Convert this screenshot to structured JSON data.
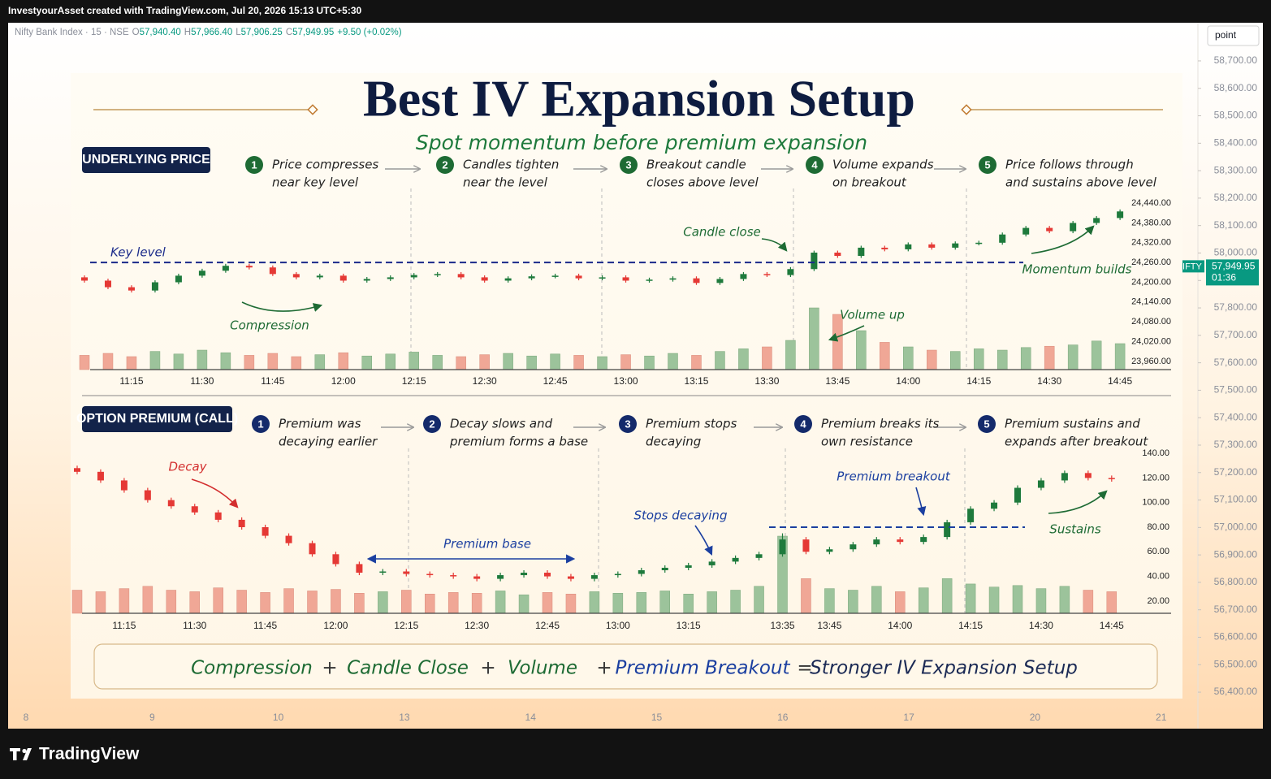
{
  "header": {
    "watermark": "InvestyourAsset created with TradingView.com, Jul 20, 2026 15:13 UTC+5:30"
  },
  "footer": {
    "logo": "TradingView"
  },
  "tv_chart": {
    "legend": {
      "symbol": "Nifty Bank Index · 15 · NSE",
      "items": [
        [
          "O",
          "57,940.40"
        ],
        [
          "H",
          "57,966.40"
        ],
        [
          "L",
          "57,906.25"
        ],
        [
          "C",
          "57,949.95"
        ]
      ],
      "change": "+9.50 (+0.02%)"
    },
    "button": "point",
    "ylim": [
      56267,
      58839
    ],
    "yticks": [
      {
        "value": 58700,
        "label": "58,700.00"
      },
      {
        "value": 58600,
        "label": "58,600.00"
      },
      {
        "value": 58500,
        "label": "58,500.00"
      },
      {
        "value": 58400,
        "label": "58,400.00"
      },
      {
        "value": 58300,
        "label": "58,300.00"
      },
      {
        "value": 58200,
        "label": "58,200.00"
      },
      {
        "value": 58100,
        "label": "58,100.00"
      },
      {
        "value": 58000,
        "label": "58,000.00"
      },
      {
        "value": 57900,
        "label": "57,900.00"
      },
      {
        "value": 57800,
        "label": "57,800.00"
      },
      {
        "value": 57700,
        "label": "57,700.00"
      },
      {
        "value": 57600,
        "label": "57,600.00"
      },
      {
        "value": 57500,
        "label": "57,500.00"
      },
      {
        "value": 57400,
        "label": "57,400.00"
      },
      {
        "value": 57300,
        "label": "57,300.00"
      },
      {
        "value": 57200,
        "label": "57,200.00"
      },
      {
        "value": 57100,
        "label": "57,100.00"
      },
      {
        "value": 57000,
        "label": "57,000.00"
      },
      {
        "value": 56900,
        "label": "56,900.00"
      },
      {
        "value": 56800,
        "label": "56,800.00"
      },
      {
        "value": 56700,
        "label": "56,700.00"
      },
      {
        "value": 56600,
        "label": "56,600.00"
      },
      {
        "value": 56500,
        "label": "56,500.00"
      },
      {
        "value": 56400,
        "label": "56,400.00"
      }
    ],
    "x_labels": [
      "8",
      "9",
      "10",
      "13",
      "14",
      "15",
      "16",
      "17",
      "20",
      "21"
    ],
    "price_tag": {
      "symbol": "BANKNIFTY",
      "price": {
        "value": 57949.95,
        "label": "57,949.95"
      },
      "countdown": "01:36",
      "color": "#089981"
    }
  },
  "infographic": {
    "title": "Best IV Expansion Setup",
    "subtitle": "Spot momentum before premium expansion",
    "formula": [
      {
        "text": "Compression",
        "color": "#1e6b34"
      },
      {
        "text": "+",
        "color": "#333333"
      },
      {
        "text": "Candle Close",
        "color": "#1e6b34"
      },
      {
        "text": "+",
        "color": "#333333"
      },
      {
        "text": "Volume",
        "color": "#1e6b34"
      },
      {
        "text": "+",
        "color": "#333333"
      },
      {
        "text": "Premium Breakout",
        "color": "#1b3fa0"
      },
      {
        "text": "=",
        "color": "#333333"
      },
      {
        "text": "Stronger IV Expansion Setup",
        "color": "#1b2a55"
      }
    ]
  },
  "chart_data": [
    {
      "type": "candlestick",
      "badge": "UNDERLYING PRICE",
      "step_color": "#1e6b34",
      "steps": [
        {
          "number": "1",
          "lines": [
            "Price compresses",
            "near key level"
          ]
        },
        {
          "number": "2",
          "lines": [
            "Candles tighten",
            "near the level"
          ]
        },
        {
          "number": "3",
          "lines": [
            "Breakout candle",
            "closes above level"
          ]
        },
        {
          "number": "4",
          "lines": [
            "Volume expands",
            "on breakout"
          ]
        },
        {
          "number": "5",
          "lines": [
            "Price follows through",
            "and sustains above level"
          ]
        }
      ],
      "annotations": [
        {
          "text": "Key level",
          "color": "#1b2a8a"
        },
        {
          "text": "Compression",
          "color": "#1e6b34"
        },
        {
          "text": "Candle close",
          "color": "#1e6b34"
        },
        {
          "text": "Volume up",
          "color": "#1e6b34"
        },
        {
          "text": "Momentum builds",
          "color": "#1e6b34"
        }
      ],
      "level": 24260,
      "level_color": "#1b2a8a",
      "up_color": "#1e7a3c",
      "down_color": "#e53935",
      "volume_up_color": "#9cc39b",
      "volume_down_color": "#f0a796",
      "ylim": [
        23935,
        24465
      ],
      "yticks": [
        {
          "value": 24440,
          "label": "24,440.00"
        },
        {
          "value": 24380,
          "label": "24,380.00"
        },
        {
          "value": 24320,
          "label": "24,320.00"
        },
        {
          "value": 24260,
          "label": "24,260.00"
        },
        {
          "value": 24200,
          "label": "24,200.00"
        },
        {
          "value": 24140,
          "label": "24,140.00"
        },
        {
          "value": 24080,
          "label": "24,080.00"
        },
        {
          "value": 24020,
          "label": "24,020.00"
        },
        {
          "value": 23960,
          "label": "23,960.00"
        }
      ],
      "categories": [
        null,
        null,
        "11:15",
        null,
        null,
        "11:30",
        null,
        null,
        "11:45",
        null,
        null,
        "12:00",
        null,
        null,
        "12:15",
        null,
        null,
        "12:30",
        null,
        null,
        "12:45",
        null,
        null,
        "13:00",
        null,
        null,
        "13:15",
        null,
        null,
        "13:30",
        null,
        null,
        "13:45",
        null,
        null,
        "14:00",
        null,
        null,
        "14:15",
        null,
        null,
        "14:30",
        null,
        null,
        "14:45"
      ],
      "open": [
        24215,
        24205,
        24185,
        24175,
        24200,
        24220,
        24235,
        24250,
        24245,
        24225,
        24215,
        24220,
        24205,
        24210,
        24215,
        24222,
        24225,
        24215,
        24205,
        24212,
        24218,
        24220,
        24212,
        24215,
        24205,
        24208,
        24212,
        24198,
        24210,
        24225,
        24222,
        24240,
        24290,
        24280,
        24305,
        24300,
        24315,
        24305,
        24318,
        24320,
        24345,
        24365,
        24355,
        24380,
        24395
      ],
      "high": [
        24221,
        24211,
        24191,
        24206,
        24226,
        24241,
        24256,
        24256,
        24251,
        24231,
        24226,
        24226,
        24216,
        24221,
        24228,
        24231,
        24231,
        24221,
        24218,
        24224,
        24226,
        24226,
        24221,
        24221,
        24214,
        24218,
        24218,
        24216,
        24231,
        24231,
        24246,
        24296,
        24296,
        24311,
        24311,
        24321,
        24321,
        24324,
        24326,
        24351,
        24371,
        24371,
        24386,
        24401,
        24421
      ],
      "low": [
        24199,
        24179,
        24169,
        24169,
        24194,
        24214,
        24229,
        24239,
        24219,
        24209,
        24209,
        24199,
        24199,
        24204,
        24209,
        24216,
        24209,
        24199,
        24199,
        24206,
        24212,
        24206,
        24206,
        24199,
        24199,
        24202,
        24192,
        24192,
        24204,
        24216,
        24216,
        24234,
        24274,
        24274,
        24294,
        24294,
        24299,
        24299,
        24312,
        24314,
        24339,
        24349,
        24349,
        24374,
        24389
      ],
      "close": [
        24205,
        24185,
        24175,
        24200,
        24220,
        24235,
        24250,
        24245,
        24225,
        24215,
        24220,
        24205,
        24210,
        24215,
        24222,
        24225,
        24215,
        24205,
        24212,
        24218,
        24220,
        24212,
        24215,
        24205,
        24208,
        24212,
        24198,
        24210,
        24225,
        24222,
        24240,
        24290,
        24280,
        24305,
        24300,
        24315,
        24305,
        24318,
        24320,
        24345,
        24365,
        24355,
        24380,
        24395,
        24415
      ],
      "volume": [
        22,
        25,
        20,
        28,
        24,
        30,
        26,
        22,
        25,
        20,
        23,
        26,
        21,
        24,
        27,
        22,
        20,
        23,
        25,
        21,
        24,
        22,
        20,
        23,
        21,
        25,
        22,
        28,
        32,
        35,
        45,
        95,
        85,
        60,
        42,
        35,
        30,
        28,
        32,
        30,
        34,
        36,
        38,
        44,
        40
      ]
    },
    {
      "type": "candlestick",
      "badge": "OPTION PREMIUM (CALL)",
      "step_color": "#142a6b",
      "steps": [
        {
          "number": "1",
          "lines": [
            "Premium was",
            "decaying earlier"
          ]
        },
        {
          "number": "2",
          "lines": [
            "Decay slows and",
            "premium forms a base"
          ]
        },
        {
          "number": "3",
          "lines": [
            "Premium stops",
            "decaying"
          ]
        },
        {
          "number": "4",
          "lines": [
            "Premium breaks its",
            "own resistance"
          ]
        },
        {
          "number": "5",
          "lines": [
            "Premium sustains and",
            "expands after breakout"
          ]
        }
      ],
      "annotations": [
        {
          "text": "Decay",
          "color": "#d32f2f"
        },
        {
          "text": "Premium base",
          "color": "#1b3fa0"
        },
        {
          "text": "Stops decaying",
          "color": "#1b3fa0"
        },
        {
          "text": "Premium breakout",
          "color": "#1b3fa0"
        },
        {
          "text": "Sustains",
          "color": "#1e6b34"
        }
      ],
      "level": 80,
      "level_color": "#1b3fa0",
      "up_color": "#1e7a3c",
      "down_color": "#e53935",
      "volume_up_color": "#9cc39b",
      "volume_down_color": "#f0a796",
      "ylim": [
        10,
        148
      ],
      "yticks": [
        {
          "value": 140,
          "label": "140.00"
        },
        {
          "value": 120,
          "label": "120.00"
        },
        {
          "value": 100,
          "label": "100.00"
        },
        {
          "value": 80,
          "label": "80.00"
        },
        {
          "value": 60,
          "label": "60.00"
        },
        {
          "value": 40,
          "label": "40.00"
        },
        {
          "value": 20,
          "label": "20.00"
        }
      ],
      "categories": [
        null,
        null,
        "11:15",
        null,
        null,
        "11:30",
        null,
        null,
        "11:45",
        null,
        null,
        "12:00",
        null,
        null,
        "12:15",
        null,
        null,
        "12:30",
        null,
        null,
        "12:45",
        null,
        null,
        "13:00",
        null,
        null,
        "13:15",
        null,
        null,
        null,
        "13:35",
        null,
        "13:45",
        null,
        null,
        "14:00",
        null,
        null,
        "14:15",
        null,
        null,
        "14:30",
        null,
        null,
        "14:45"
      ],
      "open": [
        128,
        125,
        118,
        110,
        102,
        97,
        92,
        86,
        80,
        73,
        67,
        58,
        50,
        43,
        44,
        42,
        41,
        40,
        38,
        41,
        43,
        40,
        38,
        41,
        42,
        45,
        47,
        49,
        52,
        55,
        58,
        70,
        60,
        62,
        66,
        70,
        68,
        72,
        84,
        95,
        100,
        112,
        118,
        124,
        120
      ],
      "high": [
        130,
        127,
        120,
        112,
        104,
        99,
        94,
        88,
        82,
        75,
        69,
        60,
        52,
        46,
        46,
        44,
        43,
        42,
        43,
        45,
        45,
        42,
        43,
        44,
        47,
        49,
        51,
        54,
        57,
        60,
        75,
        72,
        64,
        68,
        72,
        72,
        74,
        86,
        97,
        102,
        114,
        120,
        126,
        126,
        122
      ],
      "low": [
        123,
        116,
        108,
        100,
        95,
        90,
        84,
        78,
        71,
        65,
        56,
        48,
        41,
        41,
        40,
        39,
        38,
        36,
        36,
        39,
        38,
        36,
        36,
        39,
        40,
        43,
        45,
        47,
        50,
        53,
        56,
        58,
        58,
        60,
        64,
        66,
        66,
        70,
        82,
        93,
        98,
        110,
        116,
        118,
        117
      ],
      "close": [
        125,
        118,
        110,
        102,
        97,
        92,
        86,
        80,
        73,
        67,
        58,
        50,
        43,
        44,
        42,
        41,
        40,
        38,
        41,
        43,
        40,
        38,
        41,
        42,
        45,
        47,
        49,
        52,
        55,
        58,
        70,
        60,
        62,
        66,
        70,
        68,
        72,
        84,
        95,
        100,
        112,
        118,
        124,
        120,
        119
      ],
      "volume": [
        30,
        28,
        32,
        35,
        30,
        28,
        33,
        30,
        27,
        32,
        29,
        31,
        26,
        28,
        30,
        25,
        27,
        26,
        29,
        24,
        27,
        25,
        28,
        26,
        27,
        29,
        25,
        28,
        30,
        35,
        100,
        45,
        32,
        30,
        35,
        28,
        33,
        45,
        38,
        34,
        36,
        32,
        35,
        30,
        28
      ]
    }
  ]
}
